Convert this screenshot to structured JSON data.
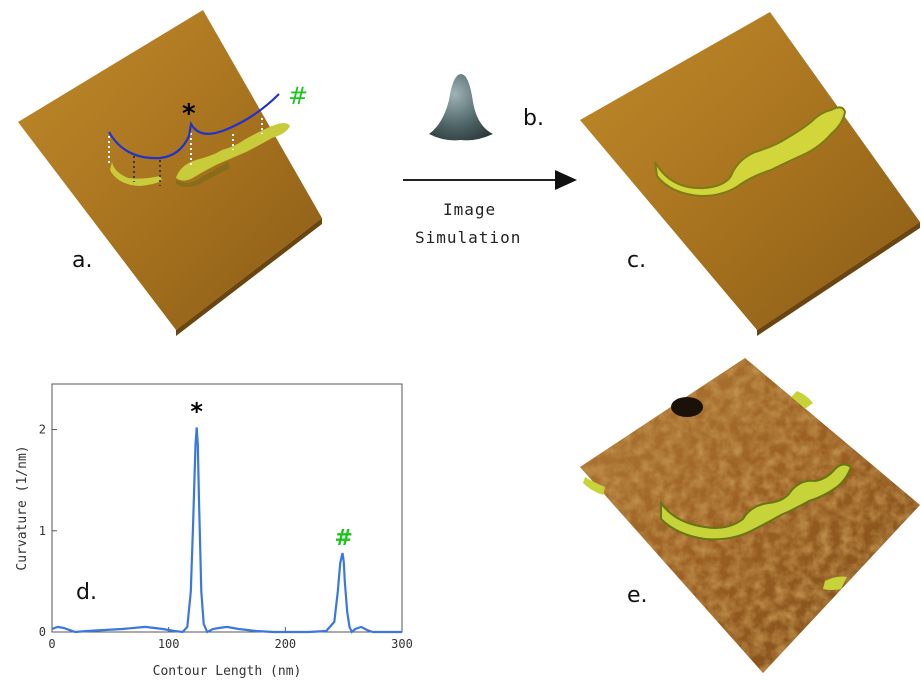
{
  "panels": {
    "a": {
      "label": "a.",
      "markers": {
        "star": "*",
        "hash": "#"
      }
    },
    "b": {
      "label": "b.",
      "arrow_text_line1": "Image",
      "arrow_text_line2": "Simulation"
    },
    "c": {
      "label": "c."
    },
    "d": {
      "label": "d."
    },
    "e": {
      "label": "e."
    }
  },
  "colors": {
    "surface": "#a9741f",
    "molecule": "#c9cc3a",
    "contour": "#2233cc",
    "curve": "#3a78e0",
    "hash": "#1ec41e"
  },
  "chart_data": {
    "type": "line",
    "xlabel": "Contour Length (nm)",
    "ylabel": "Curvature (1/nm)",
    "xlim": [
      0,
      300
    ],
    "ylim": [
      0,
      2.45
    ],
    "xticks": [
      "0",
      "100",
      "200",
      "300"
    ],
    "yticks": [
      "0",
      "1",
      "2"
    ],
    "annotations": [
      {
        "text": "*",
        "x": 124,
        "y": 2.02,
        "color": "#000000"
      },
      {
        "text": "#",
        "x": 250,
        "y": 0.78,
        "color": "#1ec41e"
      }
    ],
    "series": [
      {
        "x": [
          0,
          5,
          10,
          20,
          30,
          45,
          60,
          80,
          95,
          105,
          112,
          116,
          119,
          121,
          123,
          124,
          125,
          126,
          128,
          130,
          133,
          138,
          143,
          150,
          160,
          175,
          190,
          205,
          220,
          235,
          242,
          245,
          247,
          249,
          250,
          251,
          253,
          255,
          257,
          260,
          265,
          270,
          275,
          285,
          300
        ],
        "values": [
          0.03,
          0.05,
          0.04,
          0.0,
          0.01,
          0.02,
          0.03,
          0.05,
          0.03,
          0.01,
          0.0,
          0.05,
          0.4,
          1.1,
          1.85,
          2.02,
          1.85,
          1.3,
          0.4,
          0.08,
          0.0,
          0.03,
          0.04,
          0.05,
          0.03,
          0.01,
          0.0,
          0.0,
          0.0,
          0.01,
          0.1,
          0.4,
          0.68,
          0.78,
          0.7,
          0.5,
          0.2,
          0.05,
          0.0,
          0.03,
          0.05,
          0.02,
          0.0,
          0.0,
          0.0
        ]
      }
    ]
  }
}
